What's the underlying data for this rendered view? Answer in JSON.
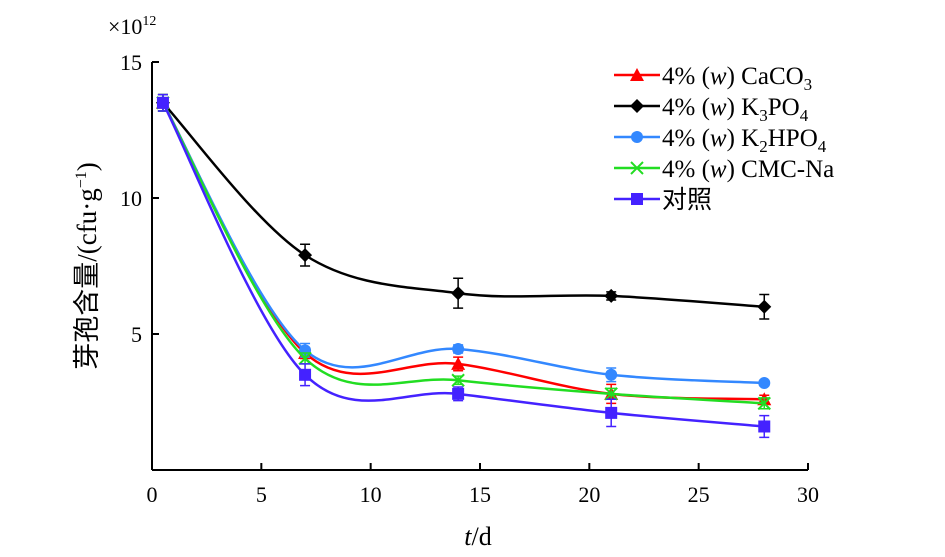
{
  "chart_data": {
    "type": "line",
    "title": "",
    "xlabel_italic": "t",
    "xlabel_rest": "/d",
    "ylabel": "芽孢含量/(cfu·g",
    "ylabel_sup": "−1",
    "ylabel_close": ")",
    "multiplier_prefix": "×10",
    "multiplier_exp": "12",
    "xlim": [
      0,
      30
    ],
    "ylim": [
      0,
      15
    ],
    "xticks": [
      "0",
      "5",
      "10",
      "15",
      "20",
      "25",
      "30"
    ],
    "yticks": [
      "5",
      "10",
      "15"
    ],
    "grid": false,
    "legend_position": "top-right",
    "x": [
      0.5,
      7,
      14,
      21,
      28
    ],
    "series": [
      {
        "name": "4% (w) CaCO3",
        "label_parts": [
          {
            "t": "4% ("
          },
          {
            "t": "w",
            "i": true
          },
          {
            "t": ") CaCO"
          },
          {
            "t": "3",
            "sub": true
          }
        ],
        "color": "#ff0000",
        "marker": "triangle",
        "values": [
          13.5,
          4.3,
          3.9,
          2.8,
          2.6
        ],
        "errors": [
          0.3,
          0.2,
          0.25,
          0.35,
          0.15
        ]
      },
      {
        "name": "4% (w) K3PO4",
        "label_parts": [
          {
            "t": "4% ("
          },
          {
            "t": "w",
            "i": true
          },
          {
            "t": ") K"
          },
          {
            "t": "3",
            "sub": true
          },
          {
            "t": "PO"
          },
          {
            "t": "4",
            "sub": true
          }
        ],
        "color": "#000000",
        "marker": "diamond",
        "values": [
          13.5,
          7.9,
          6.5,
          6.4,
          6.0
        ],
        "errors": [
          0.3,
          0.4,
          0.55,
          0.15,
          0.45
        ]
      },
      {
        "name": "4% (w) K2HPO4",
        "label_parts": [
          {
            "t": "4% ("
          },
          {
            "t": "w",
            "i": true
          },
          {
            "t": ") K"
          },
          {
            "t": "2",
            "sub": true
          },
          {
            "t": "HPO"
          },
          {
            "t": "4",
            "sub": true
          }
        ],
        "color": "#3388ff",
        "marker": "circle",
        "values": [
          13.5,
          4.4,
          4.45,
          3.5,
          3.2
        ],
        "errors": [
          0.3,
          0.25,
          0.15,
          0.25,
          0.1
        ]
      },
      {
        "name": "4% (w) CMC-Na",
        "label_parts": [
          {
            "t": "4% ("
          },
          {
            "t": "w",
            "i": true
          },
          {
            "t": ") CMC-Na"
          }
        ],
        "color": "#22dd22",
        "marker": "x",
        "values": [
          13.5,
          4.1,
          3.3,
          2.8,
          2.45
        ],
        "errors": [
          0.3,
          0.2,
          0.15,
          0.2,
          0.2
        ]
      },
      {
        "name": "对照",
        "label_parts": [
          {
            "t": "对照"
          }
        ],
        "color": "#4422ff",
        "marker": "square",
        "values": [
          13.5,
          3.5,
          2.8,
          2.1,
          1.6
        ],
        "errors": [
          0.3,
          0.4,
          0.25,
          0.5,
          0.4
        ]
      }
    ]
  }
}
